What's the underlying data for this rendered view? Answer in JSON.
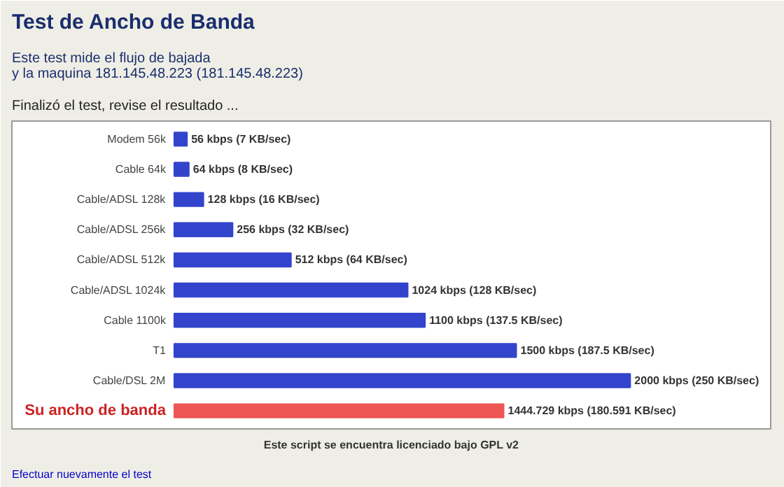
{
  "chart_data": {
    "type": "bar",
    "orientation": "horizontal",
    "title": "Test de Ancho de Banda",
    "subtitle": "Este test mide el flujo de bajada\ny la maquina 181.145.48.223 (181.145.48.223)",
    "categories": [
      "Modem 56k",
      "Cable 64k",
      "Cable/ADSL 128k",
      "Cable/ADSL 256k",
      "Cable/ADSL 512k",
      "Cable/ADSL 1024k",
      "Cable 1100k",
      "T1",
      "Cable/DSL 2M",
      "Su ancho de banda"
    ],
    "values": [
      56,
      64,
      128,
      256,
      512,
      1024,
      1100,
      1500,
      2000,
      1444.729
    ],
    "colors": [
      "#3344cc",
      "#3344cc",
      "#3344cc",
      "#3344cc",
      "#3344cc",
      "#3344cc",
      "#3344cc",
      "#3344cc",
      "#3344cc",
      "#ee5555"
    ],
    "value_labels": [
      "56 kbps (7 KB/sec)",
      "64 kbps (8 KB/sec)",
      "128 kbps (16 KB/sec)",
      "256 kbps (32 KB/sec)",
      "512 kbps (64 KB/sec)",
      "1024 kbps (128 KB/sec)",
      "1100 kbps (137.5 KB/sec)",
      "1500 kbps (187.5 KB/sec)",
      "2000 kbps (250 KB/sec)",
      "1444.729 kbps (180.591 KB/sec)"
    ],
    "annotations": [
      "Finalizó el test, revise el resultado ...",
      "Este script se encuentra licenciado bajo GPL v2",
      "Efectuar nuevamente el test"
    ],
    "grid": false
  }
}
